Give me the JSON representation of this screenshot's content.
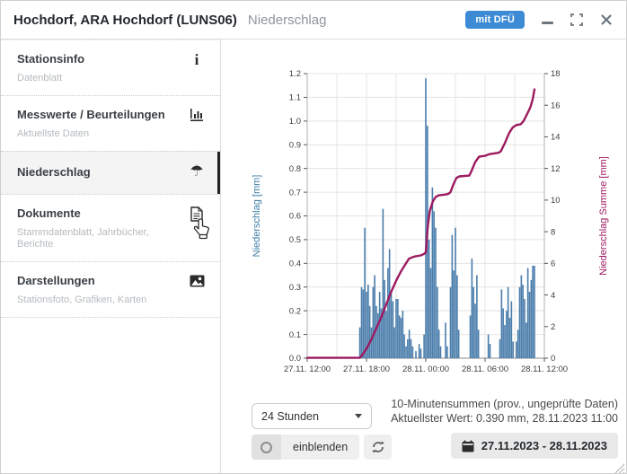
{
  "window": {
    "title": "Hochdorf, ARA Hochdorf  (LUNS06)",
    "subtitle": "Niederschlag",
    "badge": "mit DFÜ"
  },
  "icons": {
    "info_glyph": "i",
    "umbrella_glyph": "☂"
  },
  "sidebar": {
    "items": [
      {
        "label": "Stationsinfo",
        "sublabel": "Datenblatt",
        "icon": "info-icon",
        "selected": false
      },
      {
        "label": "Messwerte / Beurteilungen",
        "sublabel": "Aktuellste Daten",
        "icon": "bar-chart-icon",
        "selected": false
      },
      {
        "label": "Niederschlag",
        "sublabel": "",
        "icon": "umbrella-icon",
        "selected": true
      },
      {
        "label": "Dokumente",
        "sublabel": "Stammdatenblatt, Jahrbücher, Berichte",
        "icon": "document-icon",
        "selected": false
      },
      {
        "label": "Darstellungen",
        "sublabel": "Stationsfoto, Grafiken, Karten",
        "icon": "image-icon",
        "selected": false
      }
    ]
  },
  "controls": {
    "range_select_value": "24 Stunden",
    "info_line1": "10-Minutensummen (prov., ungeprüfte Daten)",
    "info_line2": "Aktuellster Wert: 0.390 mm, 28.11.2023 11:00",
    "show_button_label": "einblenden",
    "date_range": "27.11.2023 - 28.11.2023"
  },
  "colors": {
    "badge_bg": "#3d8bd4",
    "bar_blue": "#4a7dab",
    "line_magenta": "#9d1a60",
    "left_axis_label": "#3d7ea6",
    "right_axis_label": "#9d1a60"
  },
  "chart_data": {
    "type": "bar",
    "title": "",
    "x_axis": {
      "start": "27.11. 12:00",
      "end": "28.11. 12:00",
      "hours_total": 24,
      "tick_interval_hours": 6,
      "ticks": [
        "27.11. 12:00",
        "27.11. 18:00",
        "28.11. 00:00",
        "28.11. 06:00",
        "28.11. 12:00"
      ]
    },
    "y_left": {
      "label": "Niederschlag [mm]",
      "min": 0,
      "max": 1.2,
      "tick_step": 0.1,
      "color": "#3d7ea6"
    },
    "y_right": {
      "label": "Niederschlag Summe [mm]",
      "min": 0,
      "max": 18,
      "tick_step": 2,
      "color": "#9d1a60"
    },
    "grid": {
      "horizontal_step_left": 0.1,
      "vertical_step_hours": 3
    },
    "bars": {
      "name": "Niederschlag 10-Minutensummen [mm]",
      "color": "#4a7dab",
      "points": [
        [
          5.33,
          0.13
        ],
        [
          5.5,
          0.3
        ],
        [
          5.67,
          0.29
        ],
        [
          5.83,
          0.55
        ],
        [
          6.0,
          0.28
        ],
        [
          6.17,
          0.31
        ],
        [
          6.33,
          0.22
        ],
        [
          6.5,
          0.13
        ],
        [
          6.67,
          0.3
        ],
        [
          6.83,
          0.35
        ],
        [
          7.0,
          0.22
        ],
        [
          7.17,
          0.19
        ],
        [
          7.33,
          0.28
        ],
        [
          7.5,
          0.21
        ],
        [
          7.67,
          0.63
        ],
        [
          7.83,
          0.33
        ],
        [
          8.0,
          0.2
        ],
        [
          8.17,
          0.38
        ],
        [
          8.33,
          0.46
        ],
        [
          8.5,
          0.28
        ],
        [
          8.67,
          0.24
        ],
        [
          8.83,
          0.13
        ],
        [
          9.0,
          0.25
        ],
        [
          9.17,
          0.25
        ],
        [
          9.33,
          0.18
        ],
        [
          9.5,
          0.17
        ],
        [
          9.67,
          0.2
        ],
        [
          9.83,
          0.1
        ],
        [
          10.0,
          0.05
        ],
        [
          10.17,
          0.08
        ],
        [
          10.33,
          0.12
        ],
        [
          10.5,
          0.08
        ],
        [
          10.67,
          0.05
        ],
        [
          11.0,
          0.03
        ],
        [
          11.33,
          0.06
        ],
        [
          11.5,
          0.04
        ],
        [
          11.83,
          0.1
        ],
        [
          12.0,
          1.18
        ],
        [
          12.17,
          0.98
        ],
        [
          12.33,
          0.5
        ],
        [
          12.5,
          0.38
        ],
        [
          12.67,
          0.72
        ],
        [
          12.83,
          0.62
        ],
        [
          13.0,
          0.55
        ],
        [
          13.17,
          0.3
        ],
        [
          13.33,
          0.12
        ],
        [
          13.5,
          0.05
        ],
        [
          14.0,
          0.15
        ],
        [
          14.17,
          0.05
        ],
        [
          14.5,
          0.3
        ],
        [
          14.67,
          0.52
        ],
        [
          14.83,
          0.37
        ],
        [
          15.0,
          0.55
        ],
        [
          15.17,
          0.35
        ],
        [
          15.33,
          0.12
        ],
        [
          16.5,
          0.18
        ],
        [
          16.67,
          0.42
        ],
        [
          16.83,
          0.3
        ],
        [
          17.0,
          0.23
        ],
        [
          17.17,
          0.35
        ],
        [
          17.33,
          0.12
        ],
        [
          18.33,
          0.1
        ],
        [
          18.5,
          0.06
        ],
        [
          19.5,
          0.08
        ],
        [
          19.67,
          0.29
        ],
        [
          19.83,
          0.21
        ],
        [
          20.0,
          0.14
        ],
        [
          20.17,
          0.2
        ],
        [
          20.33,
          0.3
        ],
        [
          20.5,
          0.17
        ],
        [
          20.67,
          0.24
        ],
        [
          20.83,
          0.07
        ],
        [
          21.17,
          0.07
        ],
        [
          21.33,
          0.12
        ],
        [
          21.5,
          0.3
        ],
        [
          21.67,
          0.35
        ],
        [
          21.83,
          0.31
        ],
        [
          22.0,
          0.25
        ],
        [
          22.17,
          0.15
        ],
        [
          22.33,
          0.38
        ],
        [
          22.5,
          0.28
        ],
        [
          22.67,
          0.33
        ],
        [
          22.83,
          0.39
        ],
        [
          23.0,
          0.39
        ]
      ]
    },
    "line": {
      "name": "Niederschlag Summe [mm]",
      "color": "#9d1a60",
      "points": [
        [
          0,
          0.02
        ],
        [
          5.3,
          0.02
        ],
        [
          5.5,
          0.15
        ],
        [
          6,
          0.6
        ],
        [
          6.5,
          1.2
        ],
        [
          7,
          1.9
        ],
        [
          7.5,
          2.6
        ],
        [
          8,
          3.4
        ],
        [
          8.5,
          4.2
        ],
        [
          9,
          4.9
        ],
        [
          9.5,
          5.5
        ],
        [
          10,
          6.0
        ],
        [
          10.3,
          6.3
        ],
        [
          10.7,
          6.4
        ],
        [
          11,
          6.45
        ],
        [
          11.5,
          6.5
        ],
        [
          11.83,
          6.6
        ],
        [
          12,
          6.7
        ],
        [
          12.2,
          8.3
        ],
        [
          12.4,
          9.3
        ],
        [
          12.7,
          9.9
        ],
        [
          13,
          10.2
        ],
        [
          13.3,
          10.3
        ],
        [
          14,
          10.35
        ],
        [
          14.3,
          10.4
        ],
        [
          14.5,
          10.5
        ],
        [
          14.8,
          11.0
        ],
        [
          15.1,
          11.4
        ],
        [
          15.4,
          11.5
        ],
        [
          16.4,
          11.55
        ],
        [
          16.6,
          11.8
        ],
        [
          17,
          12.4
        ],
        [
          17.4,
          12.75
        ],
        [
          18,
          12.8
        ],
        [
          18.4,
          12.9
        ],
        [
          19.4,
          13.0
        ],
        [
          19.6,
          13.1
        ],
        [
          20,
          13.6
        ],
        [
          20.4,
          14.2
        ],
        [
          20.8,
          14.6
        ],
        [
          21.2,
          14.75
        ],
        [
          21.6,
          14.8
        ],
        [
          21.9,
          15.0
        ],
        [
          22.3,
          15.5
        ],
        [
          22.6,
          15.9
        ],
        [
          22.83,
          16.4
        ],
        [
          23,
          17.0
        ]
      ]
    }
  }
}
